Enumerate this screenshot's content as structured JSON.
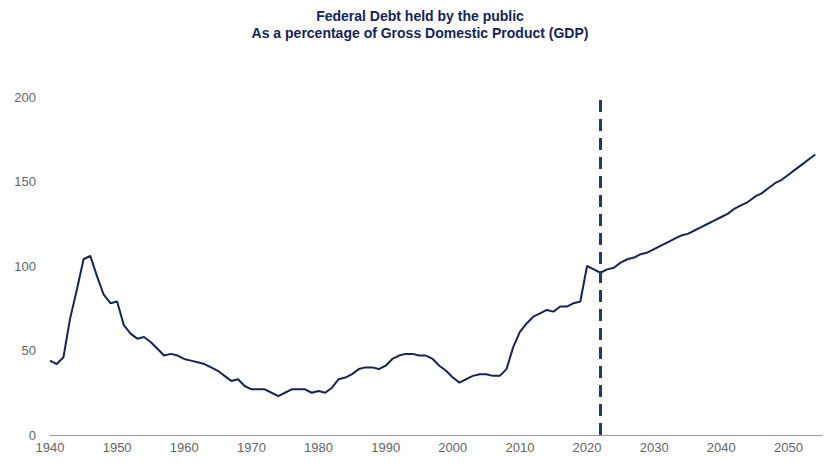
{
  "chart_data": {
    "type": "line",
    "title": "Federal Debt held by the public",
    "subtitle": "As a percentage of Gross Domestic Product (GDP)",
    "x": [
      1940,
      1941,
      1942,
      1943,
      1944,
      1945,
      1946,
      1947,
      1948,
      1949,
      1950,
      1951,
      1952,
      1953,
      1954,
      1955,
      1956,
      1957,
      1958,
      1959,
      1960,
      1961,
      1962,
      1963,
      1964,
      1965,
      1966,
      1967,
      1968,
      1969,
      1970,
      1971,
      1972,
      1973,
      1974,
      1975,
      1976,
      1977,
      1978,
      1979,
      1980,
      1981,
      1982,
      1983,
      1984,
      1985,
      1986,
      1987,
      1988,
      1989,
      1990,
      1991,
      1992,
      1993,
      1994,
      1995,
      1996,
      1997,
      1998,
      1999,
      2000,
      2001,
      2002,
      2003,
      2004,
      2005,
      2006,
      2007,
      2008,
      2009,
      2010,
      2011,
      2012,
      2013,
      2014,
      2015,
      2016,
      2017,
      2018,
      2019,
      2020,
      2021,
      2022,
      2023,
      2024,
      2025,
      2026,
      2027,
      2028,
      2029,
      2030,
      2031,
      2032,
      2033,
      2034,
      2035,
      2036,
      2037,
      2038,
      2039,
      2040,
      2041,
      2042,
      2043,
      2044,
      2045,
      2046,
      2047,
      2048,
      2049,
      2050,
      2051,
      2052,
      2053,
      2054
    ],
    "values": [
      44,
      42,
      46,
      69,
      86,
      104,
      106,
      94,
      83,
      78,
      79,
      65,
      60,
      57,
      58,
      55,
      51,
      47,
      48,
      47,
      45,
      44,
      43,
      42,
      40,
      38,
      35,
      32,
      33,
      29,
      27,
      27,
      27,
      25,
      23,
      25,
      27,
      27,
      27,
      25,
      26,
      25,
      28,
      33,
      34,
      36,
      39,
      40,
      40,
      39,
      41,
      45,
      47,
      48,
      48,
      47,
      47,
      45,
      41,
      38,
      34,
      31,
      33,
      35,
      36,
      36,
      35,
      35,
      39,
      52,
      61,
      66,
      70,
      72,
      74,
      73,
      76,
      76,
      78,
      79,
      100,
      98,
      96,
      98,
      99,
      102,
      104,
      105,
      107,
      108,
      110,
      112,
      114,
      116,
      118,
      119,
      121,
      123,
      125,
      127,
      129,
      131,
      134,
      136,
      138,
      141,
      143,
      146,
      149,
      151,
      154,
      157,
      160,
      163,
      166
    ],
    "color": "#14245c",
    "xlim": [
      1940,
      2055
    ],
    "xticks": [
      1940,
      1950,
      1960,
      1970,
      1980,
      1990,
      2000,
      2010,
      2020,
      2030,
      2040,
      2050
    ],
    "ylim": [
      0,
      200
    ],
    "yticks": [
      0,
      50,
      100,
      150,
      200
    ],
    "grid": false,
    "projection_start": 2022
  }
}
